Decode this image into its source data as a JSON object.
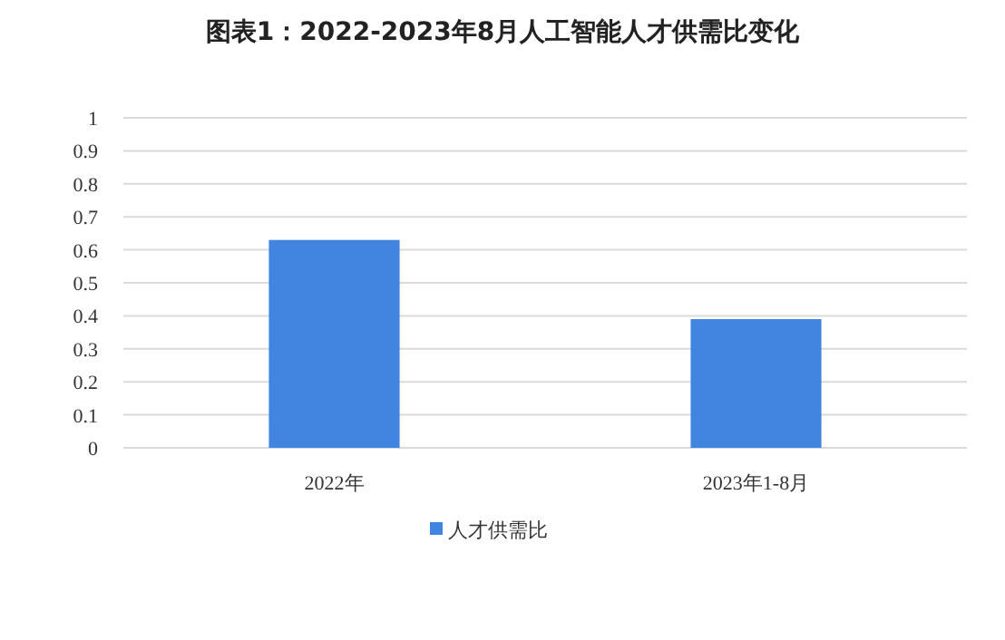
{
  "chart_data": {
    "type": "bar",
    "title": "图表1：2022-2023年8月人工智能人才供需比变化",
    "categories": [
      "2022年",
      "2023年1-8月"
    ],
    "series": [
      {
        "name": "人才供需比",
        "color": "#4285e0",
        "values": [
          0.63,
          0.39
        ]
      }
    ],
    "ylim": [
      0,
      1
    ],
    "yticks": [
      0,
      0.1,
      0.2,
      0.3,
      0.4,
      0.5,
      0.6,
      0.7,
      0.8,
      0.9,
      1
    ],
    "grid": "y",
    "legend": "bottom"
  }
}
